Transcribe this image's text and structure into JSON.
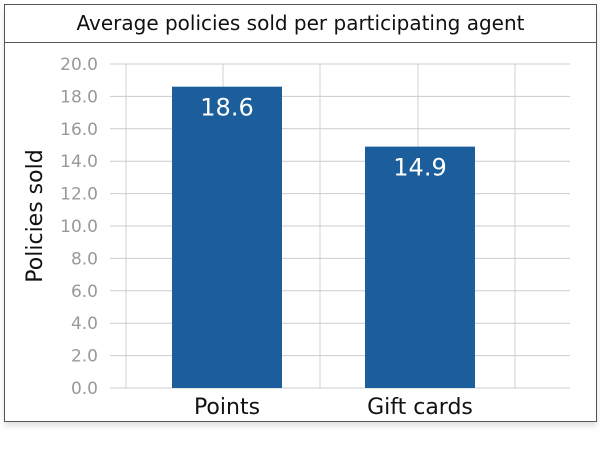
{
  "chart_data": {
    "type": "bar",
    "title": "Average policies sold per participating agent",
    "categories": [
      "Points",
      "Gift cards"
    ],
    "values": [
      18.6,
      14.9
    ],
    "value_labels": [
      "18.6",
      "14.9"
    ],
    "xlabel": "",
    "ylabel": "Policies sold",
    "ylim": [
      0,
      20
    ],
    "yticks": [
      "0.0",
      "2.0",
      "4.0",
      "6.0",
      "8.0",
      "10.0",
      "12.0",
      "14.0",
      "16.0",
      "18.0",
      "20.0"
    ],
    "grid": true,
    "bar_color": "#1b5e9b"
  }
}
